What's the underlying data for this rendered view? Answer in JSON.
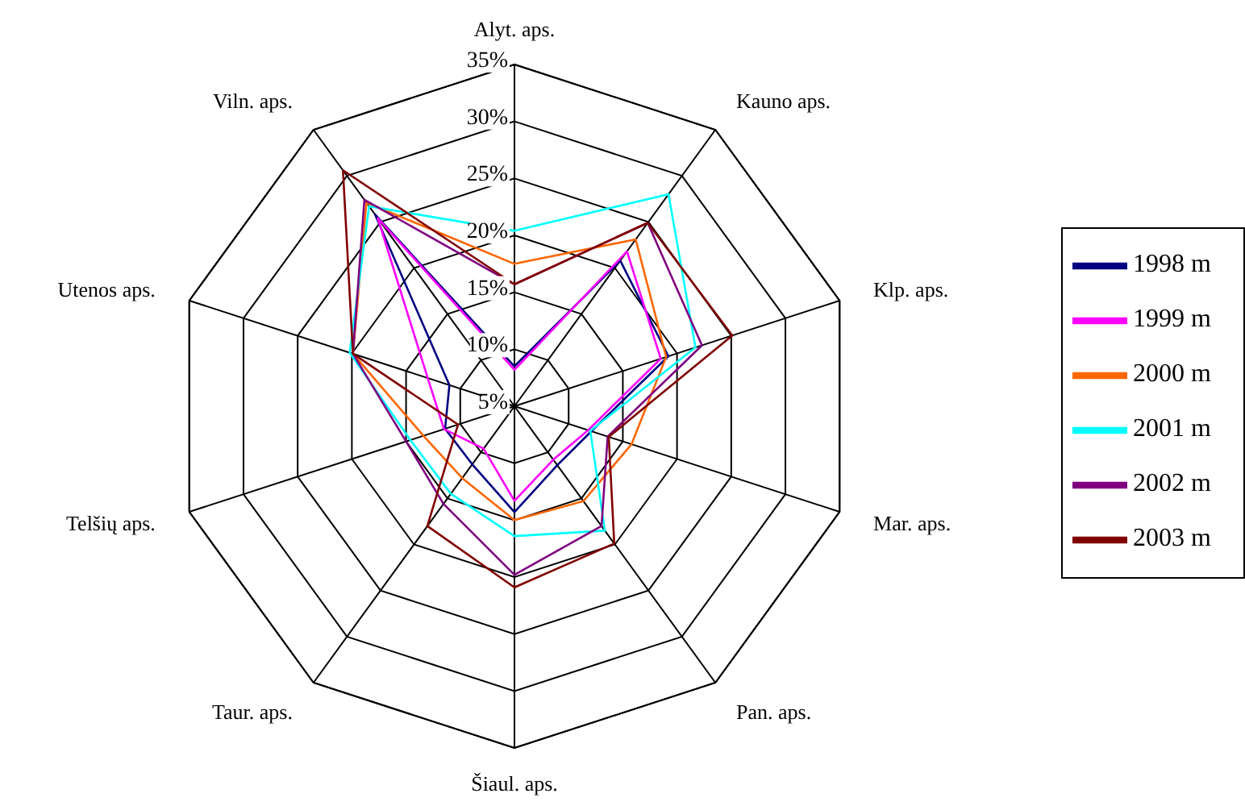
{
  "chart_data": {
    "type": "radar",
    "categories": [
      "Alyt. aps.",
      "Kauno aps.",
      "Klp. aps.",
      "Mar. aps.",
      "Pan. aps.",
      "Šiaul. aps.",
      "Taur. aps.",
      "Telšių aps.",
      "Utenos aps.",
      "Viln. aps."
    ],
    "ylim": [
      5,
      35
    ],
    "yticks": [
      {
        "value": 5,
        "label": "5%"
      },
      {
        "value": 10,
        "label": "10%"
      },
      {
        "value": 15,
        "label": "15%"
      },
      {
        "value": 20,
        "label": "20%"
      },
      {
        "value": 25,
        "label": "25%"
      },
      {
        "value": 30,
        "label": "30%"
      },
      {
        "value": 35,
        "label": "35%"
      }
    ],
    "grid": true,
    "legend": "right",
    "series": [
      {
        "name": "1998 m",
        "color": "#000080",
        "values": [
          8.5,
          20.8,
          19.2,
          12.1,
          11.4,
          14.3,
          11.3,
          11.4,
          11.0,
          25.8
        ]
      },
      {
        "name": "1999 m",
        "color": "#ff00ff",
        "values": [
          8.2,
          21.8,
          18.5,
          11.8,
          10.8,
          13.3,
          9.6,
          11.5,
          13.0,
          25.4
        ]
      },
      {
        "name": "2000 m",
        "color": "#ff6600",
        "values": [
          17.5,
          23.1,
          19.0,
          15.8,
          15.3,
          15.0,
          12.8,
          13.4,
          19.9,
          27.1
        ]
      },
      {
        "name": "2001 m",
        "color": "#00ffff",
        "values": [
          20.4,
          28.0,
          21.7,
          12.0,
          18.5,
          16.4,
          14.5,
          14.6,
          20.2,
          26.7
        ]
      },
      {
        "name": "2002 m",
        "color": "#800080",
        "values": [
          15.7,
          24.9,
          22.3,
          13.6,
          18.0,
          19.8,
          15.6,
          15.0,
          19.9,
          27.4
        ]
      },
      {
        "name": "2003 m",
        "color": "#800000",
        "values": [
          15.7,
          24.9,
          25.1,
          13.7,
          19.9,
          20.9,
          18.0,
          10.2,
          19.9,
          30.6
        ]
      }
    ]
  }
}
